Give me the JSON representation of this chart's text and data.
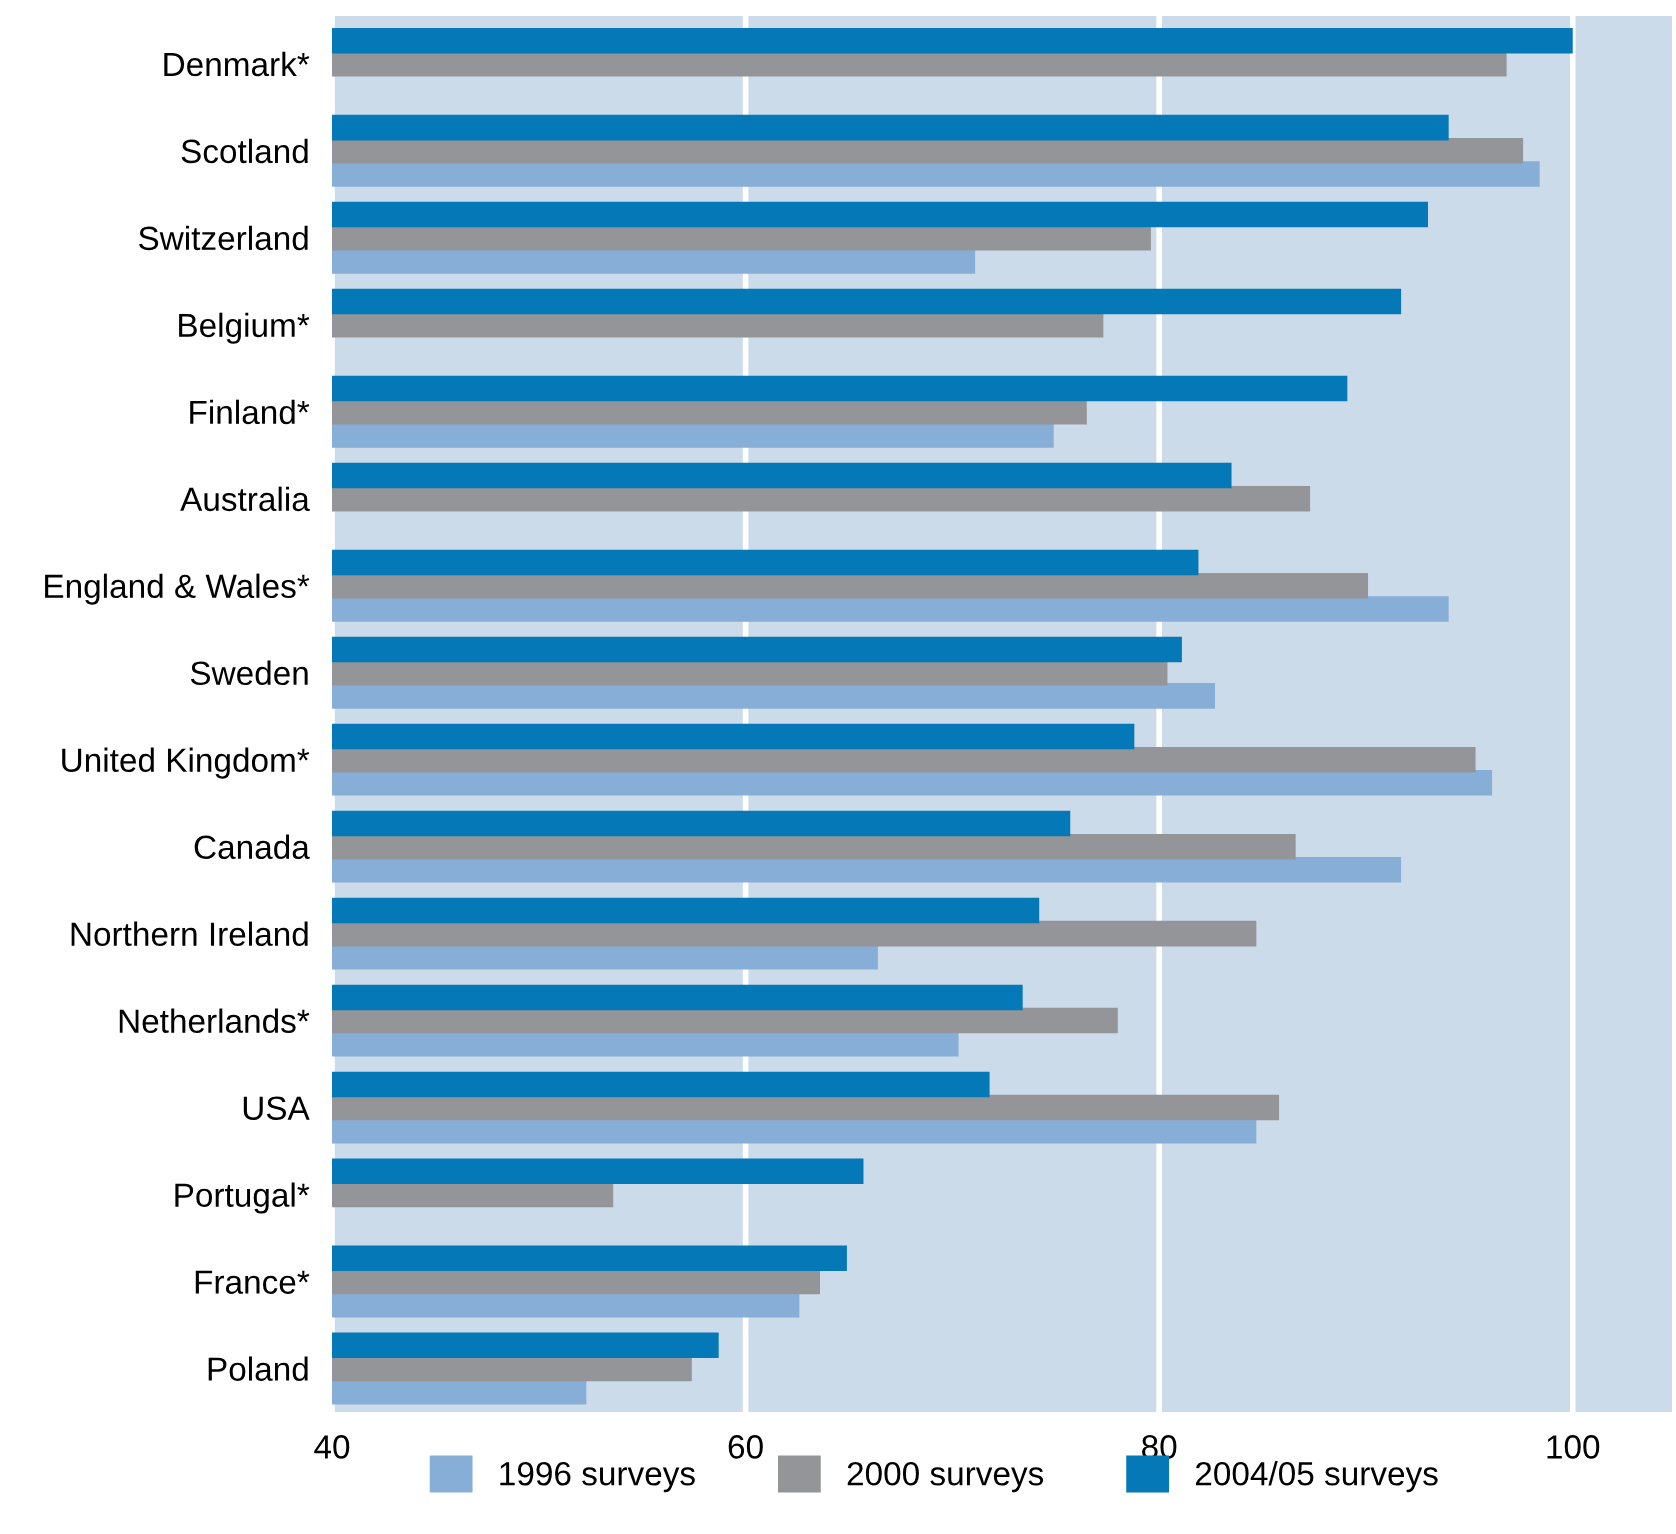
{
  "chart_data": {
    "type": "bar",
    "orientation": "horizontal",
    "categories": [
      "Denmark*",
      "Scotland",
      "Switzerland",
      "Belgium*",
      "Finland*",
      "Australia",
      "England & Wales*",
      "Sweden",
      "United Kingdom*",
      "Canada",
      "Northern Ireland",
      "Netherlands*",
      "USA",
      "Portugal*",
      "France*",
      "Poland"
    ],
    "series": [
      {
        "name": "1996 surveys",
        "color": "#87aed6",
        "values": [
          null,
          98.4,
          71.1,
          null,
          74.9,
          null,
          94.0,
          82.7,
          96.1,
          91.7,
          66.4,
          70.3,
          84.7,
          null,
          62.6,
          52.3
        ]
      },
      {
        "name": "2000 surveys",
        "color": "#939598",
        "values": [
          96.8,
          97.6,
          79.6,
          77.3,
          76.5,
          87.3,
          90.1,
          80.4,
          95.3,
          86.6,
          84.7,
          78.0,
          85.8,
          53.6,
          63.6,
          57.4
        ]
      },
      {
        "name": "2004/05 surveys",
        "color": "#0579b8",
        "values": [
          100,
          94.0,
          93.0,
          91.7,
          89.1,
          83.5,
          81.9,
          81.1,
          78.8,
          75.7,
          74.2,
          73.4,
          71.8,
          65.7,
          64.9,
          58.7
        ]
      }
    ],
    "xlim": [
      40,
      104.8
    ],
    "xticks": [
      40,
      60,
      80,
      100
    ],
    "grid": "x",
    "legend": "bottom"
  }
}
